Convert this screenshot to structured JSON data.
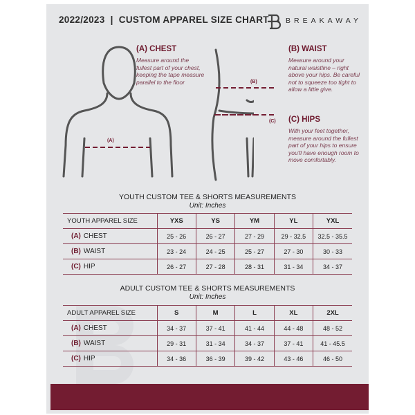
{
  "header": {
    "title": "2022/2023  |  CUSTOM APPAREL SIZE CHART",
    "brand": "BREAKAWAY"
  },
  "guides": [
    {
      "heading": "(A) CHEST",
      "text": "Measure around the fullest part of your chest, keeping the tape measure parallel to the floor",
      "marker": "(A)"
    },
    {
      "heading": "(B) WAIST",
      "text": "Measure around your natural waistline – right above your hips. Be careful not to squeeze too tight to allow a little give.",
      "marker": "(B)"
    },
    {
      "heading": "(C) HIPS",
      "text": "With your feet together, measure around the fullest part of your hips to ensure you'll have enough room to move comfortably.",
      "marker": "(C)"
    }
  ],
  "youth": {
    "title": "YOUTH CUSTOM TEE & SHORTS MEASUREMENTS",
    "unit": "Unit: Inches",
    "header": [
      "YOUTH APPAREL SIZE",
      "YXS",
      "YS",
      "YM",
      "YL",
      "YXL"
    ],
    "rows": [
      {
        "letter": "(A)",
        "name": "CHEST",
        "values": [
          "25 - 26",
          "26 - 27",
          "27 - 29",
          "29 - 32.5",
          "32.5 - 35.5"
        ]
      },
      {
        "letter": "(B)",
        "name": "WAIST",
        "values": [
          "23 - 24",
          "24 - 25",
          "25 - 27",
          "27 - 30",
          "30 - 33"
        ]
      },
      {
        "letter": "(C)",
        "name": "HIP",
        "values": [
          "26 - 27",
          "27 - 28",
          "28 - 31",
          "31 - 34",
          "34 - 37"
        ]
      }
    ]
  },
  "adult": {
    "title": "ADULT CUSTOM TEE & SHORTS MEASUREMENTS",
    "unit": "Unit: Inches",
    "header": [
      "ADULT APPAREL SIZE",
      "S",
      "M",
      "L",
      "XL",
      "2XL"
    ],
    "rows": [
      {
        "letter": "(A)",
        "name": "CHEST",
        "values": [
          "34 - 37",
          "37 - 41",
          "41 - 44",
          "44 - 48",
          "48 - 52"
        ]
      },
      {
        "letter": "(B)",
        "name": "WAIST",
        "values": [
          "29 - 31",
          "31 - 34",
          "34 - 37",
          "37 - 41",
          "41 - 45.5"
        ]
      },
      {
        "letter": "(C)",
        "name": "HIP",
        "values": [
          "34 - 36",
          "36 - 39",
          "39 - 42",
          "43 - 46",
          "46 - 50"
        ]
      }
    ]
  },
  "colors": {
    "accent": "#731c31",
    "panel": "#e5e6e8"
  }
}
